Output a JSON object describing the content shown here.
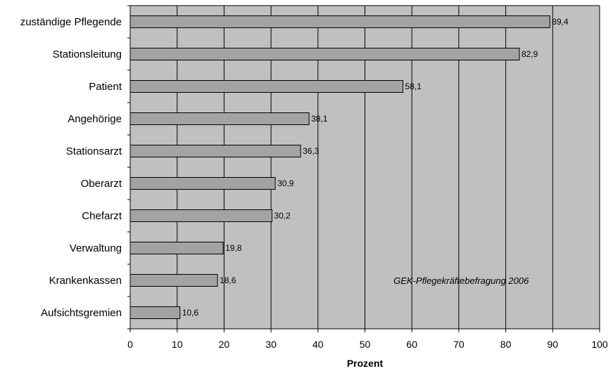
{
  "chart_data": {
    "type": "bar",
    "orientation": "horizontal",
    "categories": [
      "zuständige Pflegende",
      "Stationsleitung",
      "Patient",
      "Angehörige",
      "Stationsarzt",
      "Oberarzt",
      "Chefarzt",
      "Verwaltung",
      "Krankenkassen",
      "Aufsichtsgremien"
    ],
    "values": [
      89.4,
      82.9,
      58.1,
      38.1,
      36.3,
      30.9,
      30.2,
      19.8,
      18.6,
      10.6
    ],
    "value_labels": [
      "89,4",
      "82,9",
      "58,1",
      "38,1",
      "36,3",
      "30,9",
      "30,2",
      "19,8",
      "18,6",
      "10,6"
    ],
    "xlabel": "Prozent",
    "ylabel": "",
    "xlim": [
      0,
      100
    ],
    "xticks": [
      0,
      10,
      20,
      30,
      40,
      50,
      60,
      70,
      80,
      90,
      100
    ],
    "grid": "vertical",
    "annotation": "GEK-Pflegekräftebefragung 2006",
    "colors": {
      "plot_background": "#c0c0c0",
      "bar_fill": "#a3a3a3",
      "bar_stroke": "#000000",
      "grid": "#000000"
    }
  }
}
